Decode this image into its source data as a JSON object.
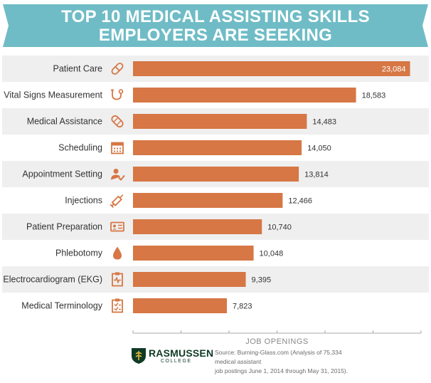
{
  "header": {
    "title_line1": "TOP 10 MEDICAL ASSISTING SKILLS",
    "title_line2": "EMPLOYERS ARE SEEKING",
    "banner_color": "#6fbcc6"
  },
  "colors": {
    "bar": "#d67745",
    "row_shade": "#efefef",
    "label_text": "#333333",
    "icon": "#d67745",
    "axis": "#aaaaaa"
  },
  "chart_data": {
    "type": "bar",
    "orientation": "horizontal",
    "xlabel": "JOB OPENINGS",
    "xlim": [
      0,
      24000
    ],
    "grid": false,
    "series": [
      {
        "values": [
          23084,
          18583,
          14483,
          14050,
          13814,
          12466,
          10740,
          10048,
          9395,
          7823
        ],
        "value_labels": [
          "23,084",
          "18,583",
          "14,483",
          "14,050",
          "13,814",
          "12,466",
          "10,740",
          "10,048",
          "9,395",
          "7,823"
        ]
      }
    ],
    "categories": [
      "Patient Care",
      "Vital Signs Measurement",
      "Medical Assistance",
      "Scheduling",
      "Appointment Setting",
      "Injections",
      "Patient Preparation",
      "Phlebotomy",
      "Electrocardiogram (EKG)",
      "Medical Terminology"
    ],
    "icons": [
      "pill-icon",
      "stethoscope-icon",
      "bandage-icon",
      "calendar-icon",
      "user-check-icon",
      "syringe-icon",
      "id-card-icon",
      "blood-drop-icon",
      "ekg-clipboard-icon",
      "checklist-clipboard-icon"
    ]
  },
  "footer": {
    "brand_name": "RASMUSSEN",
    "brand_sub": "COLLEGE",
    "source_line1": "Source: Burning-Glass.com (Analysis of 75,334 medical assistant",
    "source_line2": "job postings June 1, 2014 through May 31, 2015)."
  }
}
